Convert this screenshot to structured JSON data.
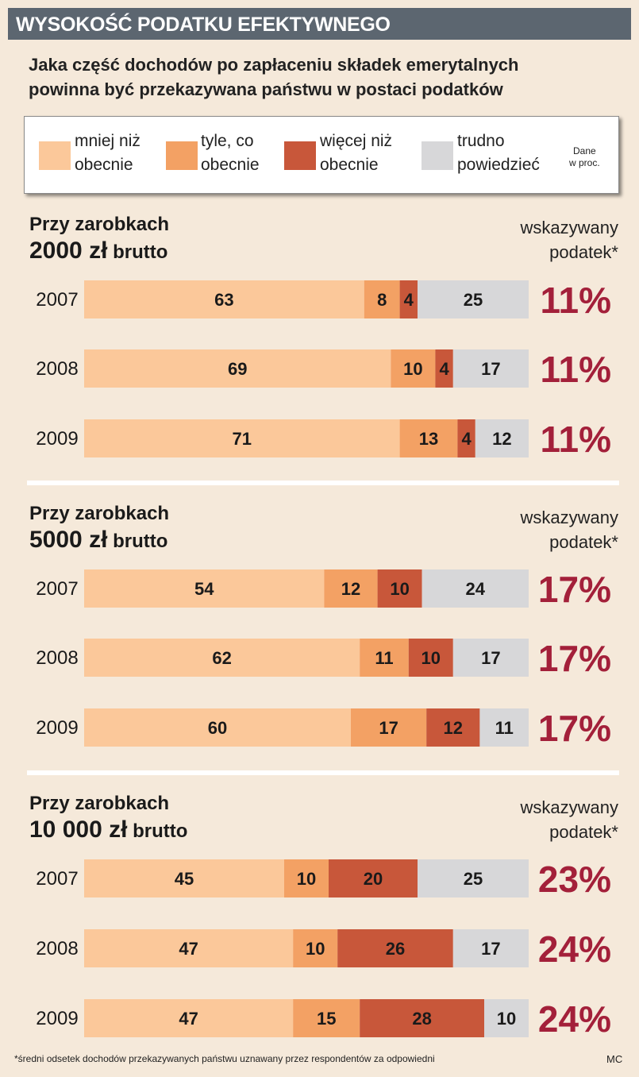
{
  "banner_title": "WYSOKOŚĆ PODATKU EFEKTYWNEGO",
  "subtitle_line1": "Jaka część dochodów po zapłaceniu składek emerytalnych",
  "subtitle_line2": "powinna być przekazywana państwu w postaci podatków",
  "legend": {
    "items": [
      {
        "line1": "mniej niż",
        "line2": "obecnie",
        "color": "#fbc89a"
      },
      {
        "line1": "tyle, co",
        "line2": "obecnie",
        "color": "#f3a164"
      },
      {
        "line1": "więcej niż",
        "line2": "obecnie",
        "color": "#c8573a"
      },
      {
        "line1": "trudno",
        "line2": "powiedzieć",
        "color": "#d7d7d9"
      }
    ],
    "note_line1": "Dane",
    "note_line2": "w proc."
  },
  "sections": [
    {
      "line1": "Przy zarobkach",
      "amount": "2000 zł",
      "suffix": " brutto",
      "indicated_line1": "wskazywany",
      "indicated_line2": "podatek*"
    },
    {
      "line1": "Przy zarobkach",
      "amount": "5000 zł",
      "suffix": " brutto",
      "indicated_line1": "wskazywany",
      "indicated_line2": "podatek*"
    },
    {
      "line1": "Przy zarobkach",
      "amount": "10 000 zł",
      "suffix": " brutto",
      "indicated_line1": "wskazywany",
      "indicated_line2": "podatek*"
    }
  ],
  "chart_data": {
    "type": "bar",
    "stacked": true,
    "orientation": "horizontal",
    "unit": "%",
    "series_names": [
      "mniej niż obecnie",
      "tyle, co obecnie",
      "więcej niż obecnie",
      "trudno powiedzieć"
    ],
    "colors": [
      "#fbc89a",
      "#f3a164",
      "#c8573a",
      "#d7d7d9"
    ],
    "tax_color": "#a3203a",
    "groups": [
      {
        "income": "2000 zł brutto",
        "rows": [
          {
            "year": "2007",
            "values": [
              63,
              8,
              4,
              25
            ],
            "tax": "11%"
          },
          {
            "year": "2008",
            "values": [
              69,
              10,
              4,
              17
            ],
            "tax": "11%"
          },
          {
            "year": "2009",
            "values": [
              71,
              13,
              4,
              12
            ],
            "tax": "11%"
          }
        ]
      },
      {
        "income": "5000 zł brutto",
        "rows": [
          {
            "year": "2007",
            "values": [
              54,
              12,
              10,
              24
            ],
            "tax": "17%"
          },
          {
            "year": "2008",
            "values": [
              62,
              11,
              10,
              17
            ],
            "tax": "17%"
          },
          {
            "year": "2009",
            "values": [
              60,
              17,
              12,
              11
            ],
            "tax": "17%"
          }
        ]
      },
      {
        "income": "10 000 zł brutto",
        "rows": [
          {
            "year": "2007",
            "values": [
              45,
              10,
              20,
              25
            ],
            "tax": "23%"
          },
          {
            "year": "2008",
            "values": [
              47,
              10,
              26,
              17
            ],
            "tax": "24%"
          },
          {
            "year": "2009",
            "values": [
              47,
              15,
              28,
              10
            ],
            "tax": "24%"
          }
        ]
      }
    ]
  },
  "footnote": "*średni odsetek dochodów przekazywanych państwu uznawany przez respondentów za odpowiedni",
  "credit": "MC"
}
